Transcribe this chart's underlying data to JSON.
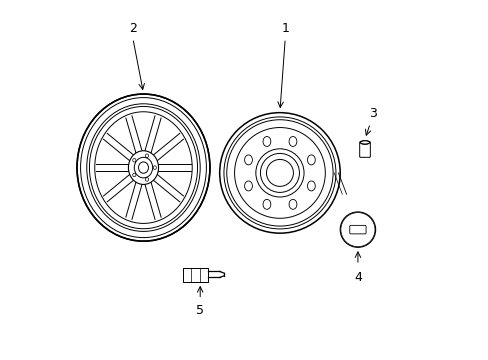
{
  "bg_color": "#ffffff",
  "line_color": "#000000",
  "lw": 0.8,
  "fig_w": 4.89,
  "fig_h": 3.6
}
